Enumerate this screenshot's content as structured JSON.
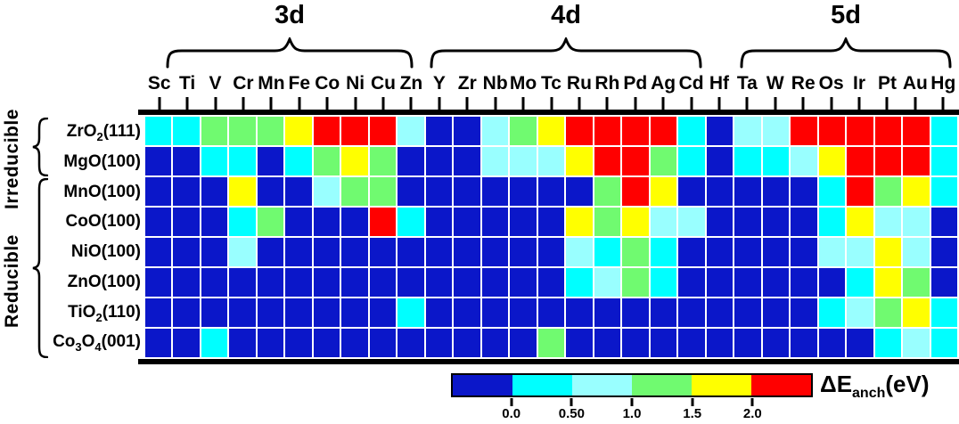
{
  "header": {
    "groups": [
      {
        "label": "3d",
        "elements": "Sc-Zn"
      },
      {
        "label": "4d",
        "elements": "Y-Cd"
      },
      {
        "label": "5d",
        "elements": "Hf-Hg"
      }
    ]
  },
  "row_groups": [
    {
      "label": "Irreducible",
      "rows": [
        "ZrO2(111)",
        "MgO(100)"
      ]
    },
    {
      "label": "Reducible",
      "rows": [
        "MnO(100)",
        "CoO(100)",
        "NiO(100)",
        "ZnO(100)",
        "TiO2(110)",
        "Co3O4(001)"
      ]
    }
  ],
  "chart_data": {
    "type": "heatmap",
    "columns": [
      "Sc",
      "Ti",
      "V",
      "Cr",
      "Mn",
      "Fe",
      "Co",
      "Ni",
      "Cu",
      "Zn",
      "Y",
      "Zr",
      "Nb",
      "Mo",
      "Tc",
      "Ru",
      "Rh",
      "Pd",
      "Ag",
      "Cd",
      "Hf",
      "Ta",
      "W",
      "Re",
      "Os",
      "Ir",
      "Pt",
      "Au",
      "Hg"
    ],
    "rows": [
      {
        "label": "ZrO2(111)",
        "parts": [
          "ZrO",
          {
            "sub": "2"
          },
          "(111)"
        ]
      },
      {
        "label": "MgO(100)",
        "parts": [
          "MgO(100)"
        ]
      },
      {
        "label": "MnO(100)",
        "parts": [
          "MnO(100)"
        ]
      },
      {
        "label": "CoO(100)",
        "parts": [
          "CoO(100)"
        ]
      },
      {
        "label": "NiO(100)",
        "parts": [
          "NiO(100)"
        ]
      },
      {
        "label": "ZnO(100)",
        "parts": [
          "ZnO(100)"
        ]
      },
      {
        "label": "TiO2(110)",
        "parts": [
          "TiO",
          {
            "sub": "2"
          },
          "(110)"
        ]
      },
      {
        "label": "Co3O4(001)",
        "parts": [
          "Co",
          {
            "sub": "3"
          },
          "O",
          {
            "sub": "4"
          },
          "(001)"
        ]
      }
    ],
    "cells": [
      "CCGGGYRRRPBBPGYRRRRCBPPRRRRRC",
      "BBCCBCGYGBBBPPPYRRGCBCCPYRRRC",
      "BBBYBBPGGBBBBBBBGRYBBBBBCRGYC",
      "BBBCGBBBRCBBBBBYGYPPBBBBCYPPB",
      "BBBPBBBBBBBBBBBPCGCBBBBBPPYPB",
      "BBBBBBBBBBBBBBBCPGCBBBBBBCYGB",
      "BBBBBBBBBCBBBBBBBBBBBBBBCPGYC",
      "BBCBBBBBBBBBBBGBBBBBBBBBBBCPC"
    ],
    "palette": {
      "B": {
        "color": "#0b17c9",
        "range": "< 0.0"
      },
      "C": {
        "color": "#00ffff",
        "range": "0.0 - 0.5"
      },
      "P": {
        "color": "#99ffff",
        "range": "0.5 - 1.0"
      },
      "G": {
        "color": "#70fa70",
        "range": "1.0 - 1.5"
      },
      "Y": {
        "color": "#ffff00",
        "range": "1.5 - 2.0"
      },
      "R": {
        "color": "#ff0000",
        "range": "> 2.0"
      }
    },
    "colorbar": {
      "segments": [
        "B",
        "C",
        "P",
        "G",
        "Y",
        "R"
      ],
      "tick_labels": [
        "0.0",
        "0.50",
        "1.0",
        "1.5",
        "2.0"
      ],
      "title": {
        "base": "ΔE",
        "sub": "anch",
        "unit": "(eV)"
      }
    }
  }
}
